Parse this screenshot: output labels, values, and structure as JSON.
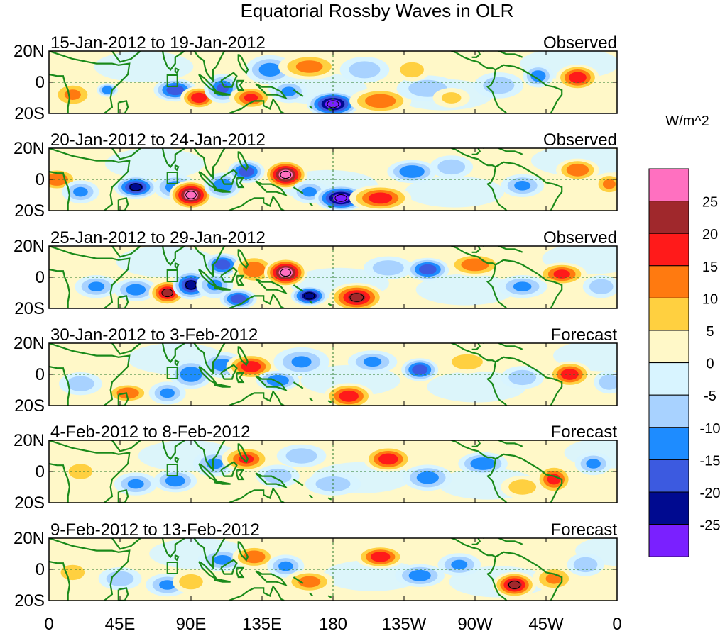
{
  "chart_data": {
    "type": "heatmap",
    "title": "Equatorial Rossby Waves in OLR",
    "units": "W/m^2",
    "x_ticks": [
      "0",
      "45E",
      "90E",
      "135E",
      "180",
      "135W",
      "90W",
      "45W",
      "0"
    ],
    "y_ticks": [
      "20N",
      "0",
      "20S"
    ],
    "xlim": [
      0,
      360
    ],
    "ylim": [
      -20,
      20
    ],
    "colorbar": {
      "labels": [
        "25",
        "20",
        "15",
        "10",
        "5",
        "0",
        "-5",
        "-10",
        "-15",
        "-20",
        "-25"
      ],
      "colors": [
        "#ff70c0",
        "#a0282c",
        "#ff1a1a",
        "#ff7a10",
        "#ffd040",
        "#fff8c8",
        "#d8f4ff",
        "#a8d2ff",
        "#1e8cff",
        "#3c5ae0",
        "#000a90",
        "#7a20ff"
      ]
    },
    "panels": [
      {
        "period": "15-Jan-2012 to 19-Jan-2012",
        "status": "Observed",
        "blobs": [
          [
            15,
            -8,
            12,
            7,
            10
          ],
          [
            37,
            -5,
            5,
            3,
            -12
          ],
          [
            80,
            -5,
            12,
            6,
            -18
          ],
          [
            95,
            -10,
            10,
            6,
            18
          ],
          [
            110,
            -4,
            10,
            8,
            -15
          ],
          [
            128,
            -10,
            12,
            6,
            15
          ],
          [
            140,
            8,
            14,
            8,
            -12
          ],
          [
            165,
            10,
            18,
            7,
            12
          ],
          [
            152,
            -6,
            10,
            6,
            -10
          ],
          [
            180,
            -14,
            15,
            7,
            -28
          ],
          [
            210,
            -12,
            18,
            7,
            14
          ],
          [
            200,
            8,
            14,
            7,
            -8
          ],
          [
            240,
            -4,
            18,
            7,
            -8
          ],
          [
            230,
            8,
            10,
            6,
            8
          ],
          [
            285,
            -2,
            14,
            7,
            -8
          ],
          [
            310,
            4,
            8,
            6,
            -12
          ],
          [
            255,
            -10,
            10,
            5,
            5
          ],
          [
            335,
            3,
            12,
            7,
            18
          ]
        ]
      },
      {
        "period": "20-Jan-2012 to 24-Jan-2012",
        "status": "Observed",
        "blobs": [
          [
            5,
            0,
            12,
            6,
            14
          ],
          [
            20,
            -8,
            10,
            6,
            -10
          ],
          [
            55,
            -5,
            12,
            6,
            -22
          ],
          [
            80,
            -5,
            12,
            7,
            -12
          ],
          [
            90,
            -10,
            12,
            8,
            28
          ],
          [
            110,
            -4,
            10,
            7,
            -14
          ],
          [
            125,
            5,
            10,
            6,
            -18
          ],
          [
            150,
            3,
            12,
            8,
            28
          ],
          [
            165,
            -8,
            10,
            6,
            -10
          ],
          [
            185,
            -12,
            15,
            7,
            -28
          ],
          [
            210,
            -12,
            18,
            7,
            18
          ],
          [
            230,
            5,
            14,
            6,
            -14
          ],
          [
            255,
            8,
            12,
            6,
            -8
          ],
          [
            300,
            -4,
            12,
            6,
            -10
          ],
          [
            335,
            6,
            12,
            6,
            14
          ],
          [
            355,
            -3,
            8,
            6,
            10
          ]
        ]
      },
      {
        "period": "25-Jan-2012 to 29-Jan-2012",
        "status": "Observed",
        "blobs": [
          [
            30,
            -6,
            12,
            6,
            -10
          ],
          [
            55,
            -8,
            12,
            6,
            -12
          ],
          [
            75,
            -10,
            10,
            7,
            20
          ],
          [
            90,
            -5,
            10,
            8,
            -22
          ],
          [
            105,
            -5,
            10,
            7,
            -10
          ],
          [
            110,
            8,
            10,
            6,
            -18
          ],
          [
            120,
            -14,
            10,
            5,
            -18
          ],
          [
            130,
            5,
            12,
            8,
            14
          ],
          [
            150,
            3,
            12,
            8,
            28
          ],
          [
            165,
            -12,
            10,
            5,
            -24
          ],
          [
            195,
            -13,
            16,
            8,
            22
          ],
          [
            215,
            6,
            14,
            6,
            -8
          ],
          [
            240,
            5,
            12,
            6,
            -18
          ],
          [
            270,
            8,
            16,
            6,
            14
          ],
          [
            300,
            -6,
            14,
            6,
            -10
          ],
          [
            325,
            2,
            14,
            6,
            16
          ],
          [
            350,
            -6,
            10,
            6,
            -8
          ]
        ]
      },
      {
        "period": "30-Jan-2012 to 3-Feb-2012",
        "status": "Forecast",
        "blobs": [
          [
            20,
            -6,
            12,
            6,
            -8
          ],
          [
            50,
            -12,
            12,
            5,
            14
          ],
          [
            75,
            -12,
            10,
            6,
            -10
          ],
          [
            90,
            0,
            12,
            8,
            -14
          ],
          [
            110,
            6,
            12,
            7,
            -12
          ],
          [
            128,
            5,
            14,
            7,
            18
          ],
          [
            145,
            -4,
            12,
            5,
            -14
          ],
          [
            160,
            8,
            16,
            8,
            -10
          ],
          [
            190,
            -14,
            14,
            7,
            18
          ],
          [
            205,
            8,
            14,
            6,
            -10
          ],
          [
            235,
            3,
            10,
            6,
            -18
          ],
          [
            265,
            8,
            14,
            6,
            8
          ],
          [
            300,
            -2,
            12,
            6,
            -8
          ],
          [
            330,
            0,
            12,
            7,
            18
          ],
          [
            355,
            -5,
            8,
            6,
            -8
          ]
        ]
      },
      {
        "period": "4-Feb-2012 to 8-Feb-2012",
        "status": "Forecast",
        "blobs": [
          [
            20,
            0,
            10,
            6,
            8
          ],
          [
            55,
            -8,
            12,
            6,
            -10
          ],
          [
            80,
            -6,
            12,
            6,
            -12
          ],
          [
            105,
            5,
            12,
            7,
            -10
          ],
          [
            125,
            8,
            14,
            7,
            15
          ],
          [
            145,
            -3,
            12,
            6,
            -8
          ],
          [
            160,
            10,
            14,
            6,
            -8
          ],
          [
            180,
            -8,
            16,
            6,
            -8
          ],
          [
            215,
            8,
            14,
            7,
            18
          ],
          [
            240,
            -4,
            14,
            7,
            -12
          ],
          [
            275,
            5,
            14,
            6,
            -14
          ],
          [
            300,
            -10,
            12,
            6,
            8
          ],
          [
            320,
            -5,
            10,
            8,
            16
          ],
          [
            345,
            5,
            10,
            6,
            -10
          ]
        ]
      },
      {
        "period": "9-Feb-2012 to 13-Feb-2012",
        "status": "Forecast",
        "blobs": [
          [
            15,
            -2,
            10,
            6,
            8
          ],
          [
            45,
            -6,
            12,
            6,
            -8
          ],
          [
            75,
            -10,
            12,
            6,
            -10
          ],
          [
            90,
            -8,
            10,
            6,
            8
          ],
          [
            110,
            6,
            14,
            6,
            -10
          ],
          [
            130,
            8,
            12,
            6,
            14
          ],
          [
            150,
            2,
            10,
            6,
            -10
          ],
          [
            165,
            -8,
            14,
            6,
            12
          ],
          [
            210,
            8,
            14,
            6,
            18
          ],
          [
            235,
            -4,
            14,
            6,
            -12
          ],
          [
            260,
            3,
            12,
            6,
            -10
          ],
          [
            295,
            -10,
            12,
            7,
            22
          ],
          [
            320,
            -6,
            12,
            7,
            10
          ],
          [
            340,
            3,
            10,
            6,
            -8
          ]
        ]
      }
    ]
  }
}
